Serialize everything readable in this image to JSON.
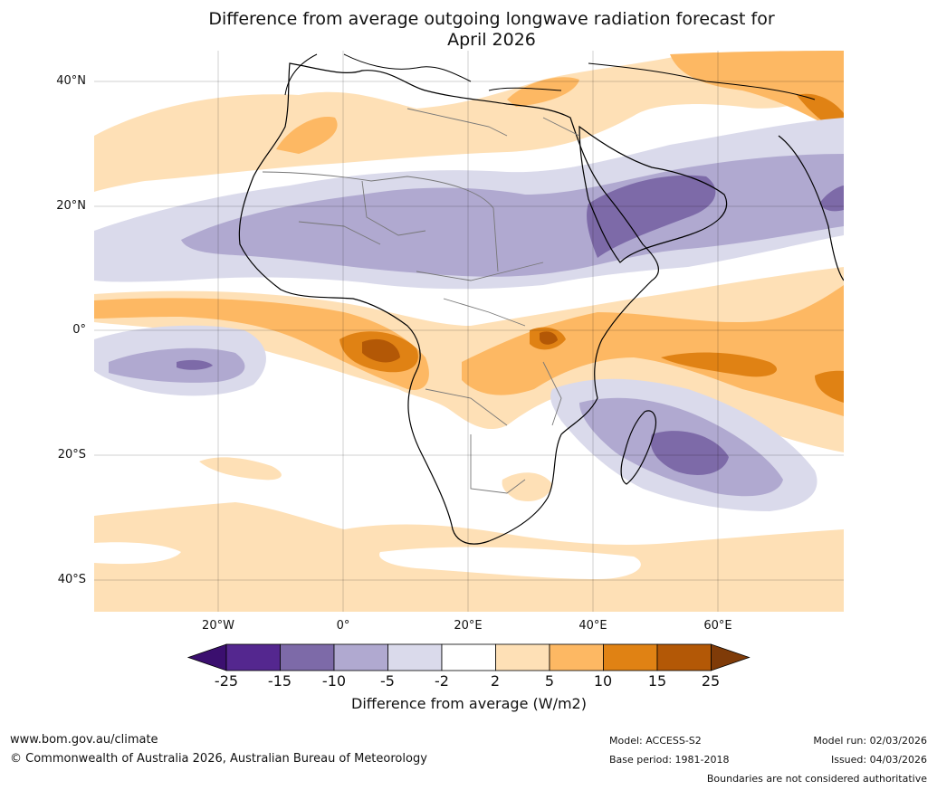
{
  "title": {
    "line1": "Difference from average outgoing longwave radiation forecast for",
    "line2": "April 2026"
  },
  "map": {
    "lat_labels": [
      "40°N",
      "20°N",
      "0°",
      "20°S",
      "40°S"
    ],
    "lon_labels": [
      "20°W",
      "0°",
      "20°E",
      "40°E",
      "60°E"
    ]
  },
  "colorbar": {
    "ticks": [
      "-25",
      "-15",
      "-10",
      "-5",
      "-2",
      "2",
      "5",
      "10",
      "15",
      "25"
    ],
    "colors": [
      "#3b0f6f",
      "#54278f",
      "#7d6aa8",
      "#b0a9d0",
      "#dadaeb",
      "#ffffff",
      "#fee0b6",
      "#fdb863",
      "#e08214",
      "#b35806",
      "#7f3b08"
    ],
    "label": "Difference from average (W/m2)"
  },
  "footer": {
    "website": "www.bom.gov.au/climate",
    "copyright": "© Commonwealth of Australia 2026, Australian Bureau of Meteorology",
    "model": "Model: ACCESS-S2",
    "base_period": "Base period: 1981-2018",
    "model_run": "Model run: 02/03/2026",
    "issued": "Issued: 04/03/2026",
    "disclaimer": "Boundaries are not considered authoritative"
  }
}
